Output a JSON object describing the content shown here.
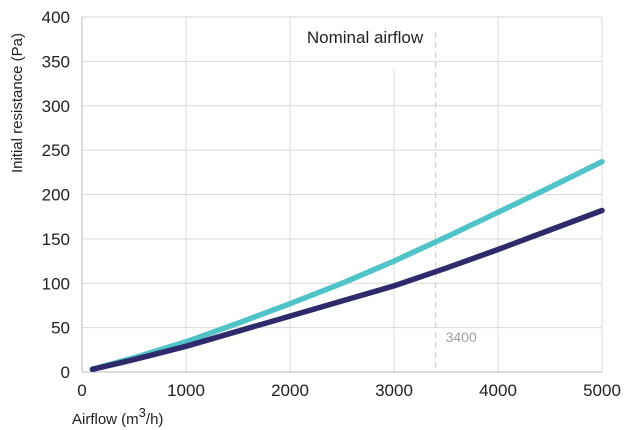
{
  "chart_data": {
    "type": "line",
    "title": "",
    "xlabel": "Airflow (m",
    "xlabel_sup": "3",
    "xlabel_tail": "/h)",
    "ylabel": "Initial resistance (Pa)",
    "xlim": [
      0,
      5000
    ],
    "ylim": [
      0,
      400
    ],
    "x_ticks": [
      0,
      1000,
      2000,
      3000,
      4000,
      5000
    ],
    "y_ticks": [
      0,
      50,
      100,
      150,
      200,
      250,
      300,
      350,
      400
    ],
    "x_tick_labels": [
      "0",
      "1000",
      "2000",
      "3000",
      "4000",
      "5000"
    ],
    "y_tick_labels": [
      "0",
      "50",
      "100",
      "150",
      "200",
      "250",
      "300",
      "350",
      "400"
    ],
    "grid": true,
    "legend": "none",
    "annotation": {
      "label": "Nominal airflow",
      "x": 3400,
      "value_label": "3400",
      "line_style": "dashed"
    },
    "series": [
      {
        "color": "#4fc3c8",
        "x": [
          100,
          500,
          1000,
          1500,
          2000,
          2500,
          3000,
          3500,
          4000,
          4500,
          5000
        ],
        "y": [
          3,
          16,
          34,
          55,
          77,
          100,
          125,
          152,
          180,
          208,
          237
        ]
      },
      {
        "color": "#2e2a6b",
        "x": [
          100,
          500,
          1000,
          1500,
          2000,
          2500,
          3000,
          3500,
          4000,
          4500,
          5000
        ],
        "y": [
          3,
          14,
          29,
          46,
          63,
          80,
          97,
          117,
          138,
          160,
          182
        ]
      }
    ]
  }
}
